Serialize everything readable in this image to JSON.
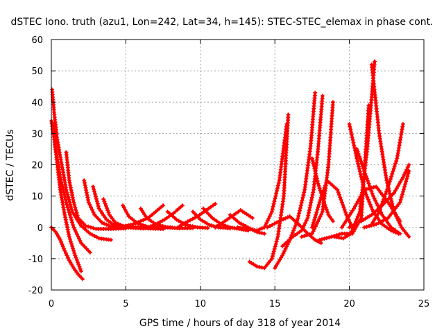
{
  "chart_data": {
    "type": "scatter",
    "title": "dSTEC Iono. truth (azu1, Lon=242, Lat=34, h=145): STEC-STEC_elemax in phase cont.",
    "xlabel": "GPS time / hours of day 318 of year 2014",
    "ylabel": "dSTEC  / TECUs",
    "xlim": [
      0,
      25
    ],
    "ylim": [
      -20,
      60
    ],
    "xticks": [
      0,
      5,
      10,
      15,
      20,
      25
    ],
    "yticks": [
      -20,
      -10,
      0,
      10,
      20,
      30,
      40,
      50,
      60
    ],
    "grid": true,
    "marker": "plus",
    "color": "#ff0000",
    "series": [
      {
        "x": [
          0.0,
          0.3,
          0.6,
          0.9,
          1.2,
          1.5,
          1.8,
          2.1
        ],
        "y": [
          0.0,
          -1.5,
          -4.0,
          -7.5,
          -10.5,
          -13.0,
          -15.0,
          -16.5
        ]
      },
      {
        "x": [
          0.05,
          0.2,
          0.4,
          0.7,
          1.0,
          1.4,
          2.0,
          2.6,
          3.2,
          4.0
        ],
        "y": [
          44.0,
          36.0,
          28.0,
          20.0,
          12.0,
          5.0,
          0.5,
          -2.0,
          -3.5,
          -4.0
        ]
      },
      {
        "x": [
          0.0,
          0.2,
          0.4,
          0.6,
          0.9,
          1.2,
          1.6,
          2.0
        ],
        "y": [
          34.0,
          28.0,
          20.0,
          12.0,
          4.0,
          -3.0,
          -9.0,
          -14.0
        ]
      },
      {
        "x": [
          0.1,
          0.3,
          0.6,
          1.0,
          1.5,
          2.0,
          2.6
        ],
        "y": [
          33.0,
          25.0,
          16.0,
          8.0,
          0.0,
          -5.0,
          -8.0
        ]
      },
      {
        "x": [
          1.0,
          1.2,
          1.5,
          1.8,
          2.3,
          3.0,
          4.0,
          5.0
        ],
        "y": [
          24.0,
          15.0,
          8.0,
          3.0,
          0.5,
          -0.5,
          -0.5,
          -0.3
        ]
      },
      {
        "x": [
          2.2,
          2.5,
          2.9,
          3.4,
          4.0,
          5.0,
          6.0
        ],
        "y": [
          15.0,
          8.0,
          4.0,
          1.5,
          0.3,
          0.0,
          -0.2
        ]
      },
      {
        "x": [
          2.8,
          3.2,
          3.7,
          4.2,
          5.0,
          6.0,
          7.5
        ],
        "y": [
          13.0,
          6.0,
          2.5,
          0.8,
          0.0,
          -0.3,
          -0.5
        ]
      },
      {
        "x": [
          3.5,
          3.9,
          4.3,
          4.8,
          5.5,
          6.5
        ],
        "y": [
          9.0,
          4.0,
          1.5,
          0.5,
          0.0,
          0.0
        ]
      },
      {
        "x": [
          4.8,
          5.2,
          5.8,
          6.5,
          7.3,
          8.0
        ],
        "y": [
          7.0,
          3.5,
          1.2,
          0.2,
          -0.1,
          0.0
        ]
      },
      {
        "x": [
          4.5,
          5.5,
          6.5,
          7.0,
          7.5
        ],
        "y": [
          0.0,
          1.0,
          3.0,
          5.0,
          7.0
        ]
      },
      {
        "x": [
          6.0,
          6.4,
          7.0,
          7.8,
          8.6,
          9.5
        ],
        "y": [
          6.0,
          3.0,
          1.0,
          0.0,
          -0.3,
          -0.2
        ]
      },
      {
        "x": [
          6.5,
          7.0,
          7.6,
          8.2,
          8.8
        ],
        "y": [
          0.0,
          1.0,
          2.5,
          4.5,
          7.0
        ]
      },
      {
        "x": [
          7.8,
          8.4,
          9.0,
          9.8,
          10.5
        ],
        "y": [
          5.0,
          2.5,
          0.8,
          0.0,
          -0.2
        ]
      },
      {
        "x": [
          8.5,
          9.0,
          9.8,
          10.4,
          11.0
        ],
        "y": [
          0.0,
          1.5,
          3.5,
          5.5,
          7.5
        ]
      },
      {
        "x": [
          9.5,
          10.0,
          10.6,
          11.2,
          12.0
        ],
        "y": [
          5.0,
          2.5,
          0.8,
          0.0,
          -0.3
        ]
      },
      {
        "x": [
          10.2,
          10.8,
          11.4,
          12.0,
          12.6,
          13.2
        ],
        "y": [
          6.0,
          3.0,
          1.0,
          0.0,
          -0.5,
          -1.0
        ]
      },
      {
        "x": [
          11.0,
          11.5,
          12.1,
          12.7,
          13.5
        ],
        "y": [
          0.0,
          1.5,
          3.5,
          5.5,
          3.0
        ]
      },
      {
        "x": [
          12.0,
          12.6,
          13.2,
          13.8,
          14.3
        ],
        "y": [
          4.0,
          1.5,
          0.0,
          -1.5,
          -2.0
        ]
      },
      {
        "x": [
          13.3,
          13.8,
          14.3,
          14.8,
          15.2,
          15.6,
          15.9
        ],
        "y": [
          -11.0,
          -12.5,
          -13.0,
          -10.0,
          -3.0,
          10.0,
          36.0
        ]
      },
      {
        "x": [
          12.5,
          13.2,
          13.8,
          14.3,
          14.8,
          15.3,
          15.8
        ],
        "y": [
          0.0,
          -0.5,
          -1.0,
          0.0,
          5.0,
          15.0,
          33.0
        ]
      },
      {
        "x": [
          15.0,
          15.5,
          16.0,
          16.5,
          17.0,
          17.4,
          17.7
        ],
        "y": [
          -13.0,
          -9.0,
          -4.0,
          2.0,
          12.0,
          26.0,
          43.0
        ]
      },
      {
        "x": [
          15.5,
          16.2,
          16.8,
          17.2,
          17.6,
          17.9,
          18.2
        ],
        "y": [
          -6.0,
          -3.0,
          -1.0,
          3.0,
          12.0,
          25.0,
          42.0
        ]
      },
      {
        "x": [
          14.5,
          15.3,
          16.0,
          16.6,
          17.2,
          17.7,
          18.1
        ],
        "y": [
          0.0,
          2.0,
          3.5,
          1.0,
          -2.0,
          -4.0,
          -5.0
        ]
      },
      {
        "x": [
          17.5,
          17.9,
          18.3,
          18.6,
          18.9
        ],
        "y": [
          22.0,
          14.0,
          8.0,
          4.0,
          2.0
        ]
      },
      {
        "x": [
          16.8,
          17.5,
          18.2,
          18.6,
          18.9
        ],
        "y": [
          -3.0,
          -2.0,
          5.0,
          20.0,
          40.0
        ]
      },
      {
        "x": [
          17.5,
          18.0,
          18.5,
          19.2,
          19.8,
          20.2
        ],
        "y": [
          0.0,
          8.0,
          15.0,
          12.0,
          4.0,
          0.0
        ]
      },
      {
        "x": [
          18.0,
          18.8,
          19.5,
          20.2,
          20.8,
          21.3
        ],
        "y": [
          -4.0,
          -3.0,
          -2.0,
          -2.0,
          3.0,
          39.0
        ]
      },
      {
        "x": [
          19.0,
          19.6,
          20.1,
          20.7,
          21.2,
          21.7
        ],
        "y": [
          -3.0,
          -3.5,
          -2.0,
          5.0,
          25.0,
          53.0
        ]
      },
      {
        "x": [
          20.0,
          20.5,
          21.0,
          21.6,
          22.2,
          22.8,
          23.3
        ],
        "y": [
          33.0,
          22.0,
          12.0,
          5.0,
          1.0,
          -1.0,
          -2.0
        ]
      },
      {
        "x": [
          20.5,
          21.0,
          21.6,
          22.2,
          22.8,
          23.4
        ],
        "y": [
          25.0,
          18.0,
          10.0,
          4.0,
          0.0,
          -2.0
        ]
      },
      {
        "x": [
          21.5,
          22.0,
          22.5,
          23.0,
          23.5,
          24.0
        ],
        "y": [
          52.0,
          30.0,
          15.0,
          5.0,
          0.0,
          -3.0
        ]
      },
      {
        "x": [
          21.5,
          22.0,
          22.6,
          23.2,
          23.6
        ],
        "y": [
          1.0,
          5.0,
          13.0,
          22.0,
          33.0
        ]
      },
      {
        "x": [
          20.0,
          20.8,
          21.5,
          22.2,
          23.0,
          23.6,
          24.0
        ],
        "y": [
          0.0,
          2.0,
          4.0,
          7.0,
          11.0,
          16.0,
          20.0
        ]
      },
      {
        "x": [
          21.0,
          21.8,
          22.6,
          23.4,
          24.0
        ],
        "y": [
          0.0,
          1.0,
          3.0,
          8.0,
          18.0
        ]
      },
      {
        "x": [
          19.5,
          20.3,
          21.0,
          21.8,
          22.6,
          23.4
        ],
        "y": [
          0.0,
          6.0,
          12.0,
          13.0,
          8.0,
          2.0
        ]
      }
    ]
  }
}
